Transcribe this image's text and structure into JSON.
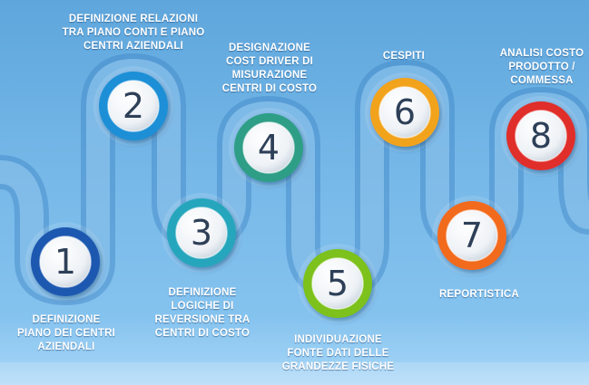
{
  "steps": [
    {
      "number": "1",
      "label": "DEFINIZIONE\nPIANO DEI CENTRI\nAZIENDALI",
      "color": "#1d58b0"
    },
    {
      "number": "2",
      "label": "DEFINIZIONE RELAZIONI\nTRA PIANO CONTI E PIANO\nCENTRI AZIENDALI",
      "color": "#1c8fd6"
    },
    {
      "number": "3",
      "label": "DEFINIZIONE\nLOGICHE DI\nREVERSIONE TRA\nCENTRI DI COSTO",
      "color": "#27a6bd"
    },
    {
      "number": "4",
      "label": "DESIGNAZIONE\nCOST DRIVER DI\nMISURAZIONE\nCENTRI DI COSTO",
      "color": "#2f9e86"
    },
    {
      "number": "5",
      "label": "INDIVIDUAZIONE\nFONTE DATI DELLE\nGRANDEZZE FISICHE",
      "color": "#7cc11e"
    },
    {
      "number": "6",
      "label": "CESPITI",
      "color": "#f2a31c"
    },
    {
      "number": "7",
      "label": "REPORTISTICA",
      "color": "#f26a1e"
    },
    {
      "number": "8",
      "label": "ANALISI COSTO\nPRODOTTO /\nCOMMESSA",
      "color": "#e02f2a"
    }
  ]
}
